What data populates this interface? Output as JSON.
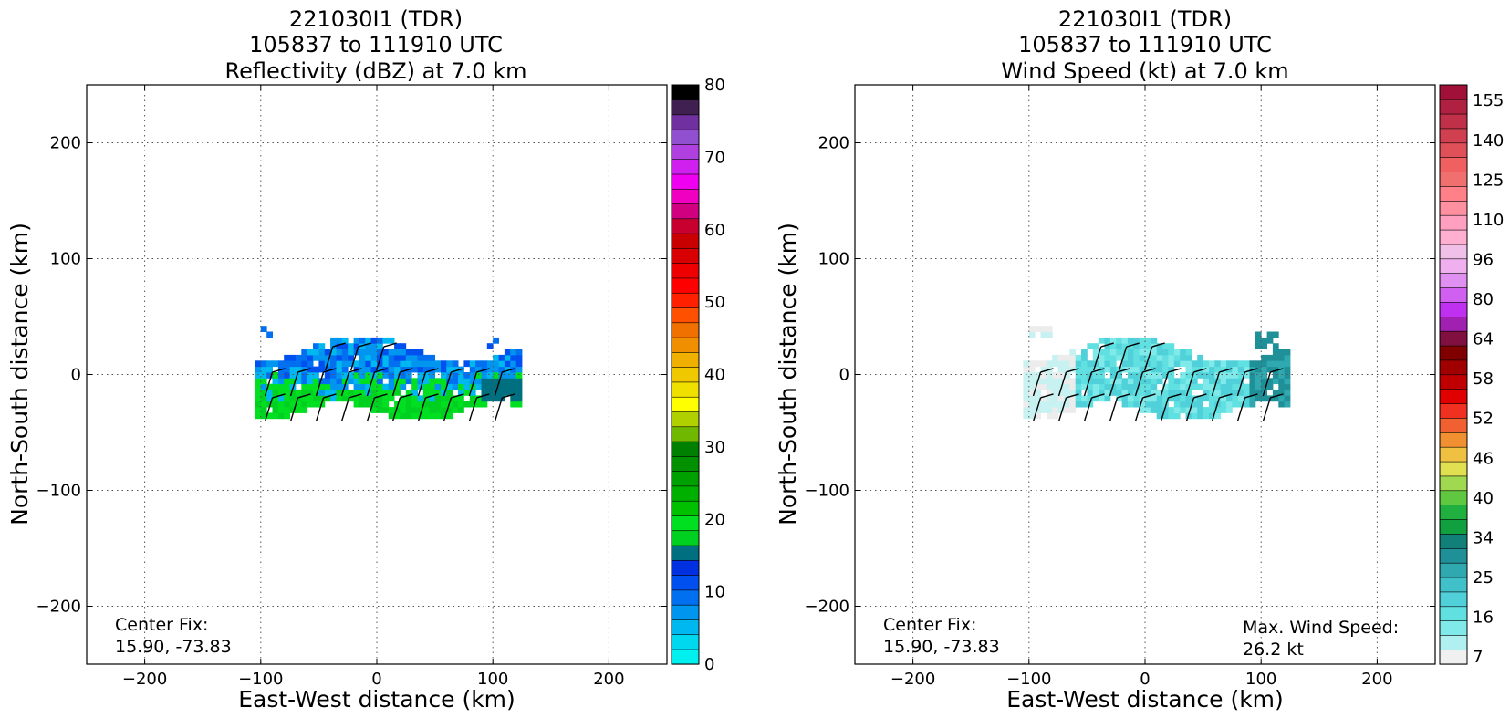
{
  "figure": {
    "panels": [
      {
        "title_lines": [
          "221030I1 (TDR)",
          "105837 to 111910 UTC",
          "Reflectivity (dBZ) at 7.0 km"
        ],
        "xlabel": "East-West distance (km)",
        "ylabel": "North-South distance (km)",
        "center_fix_label": "Center Fix:",
        "center_fix_value": "15.90, -73.83",
        "colorbar": {
          "ticks": [
            "0",
            "10",
            "20",
            "30",
            "40",
            "50",
            "60",
            "70",
            "80"
          ],
          "colors": [
            "#00f0f0",
            "#00d8f0",
            "#00b8f0",
            "#0096f0",
            "#0070f0",
            "#0050f0",
            "#0030e0",
            "#007080",
            "#00d020",
            "#00e020",
            "#00c000",
            "#00b000",
            "#00a000",
            "#009000",
            "#008000",
            "#70b800",
            "#b0d000",
            "#ffff00",
            "#f0e000",
            "#f0c800",
            "#f0b000",
            "#f09000",
            "#f07000",
            "#ff5000",
            "#ff2000",
            "#ff0000",
            "#ee0000",
            "#d80000",
            "#c80000",
            "#c80030",
            "#d00080",
            "#f000c0",
            "#f000f0",
            "#d020f0",
            "#b040e0",
            "#9050d0",
            "#7030a0",
            "#402050",
            "#000000"
          ]
        }
      },
      {
        "title_lines": [
          "221030I1 (TDR)",
          "105837 to 111910 UTC",
          "Wind Speed (kt) at 7.0 km"
        ],
        "xlabel": "East-West distance (km)",
        "ylabel": "North-South distance (km)",
        "center_fix_label": "Center Fix:",
        "center_fix_value": "15.90, -73.83",
        "max_wind_label": "Max. Wind Speed:",
        "max_wind_value": "26.2 kt",
        "colorbar": {
          "ticks": [
            "7",
            "16",
            "25",
            "34",
            "40",
            "46",
            "52",
            "58",
            "64",
            "80",
            "96",
            "110",
            "125",
            "140",
            "155"
          ],
          "colors": [
            "#f0f0f0",
            "#b0f0f0",
            "#80eaea",
            "#60e0e0",
            "#50d0d8",
            "#40c0c8",
            "#30a8b0",
            "#209098",
            "#108078",
            "#10a040",
            "#20b040",
            "#60c840",
            "#a0d850",
            "#e0e050",
            "#f0c040",
            "#f09030",
            "#f06030",
            "#f03020",
            "#e00000",
            "#c00000",
            "#a00000",
            "#800000",
            "#801040",
            "#a020b0",
            "#c030f0",
            "#d060f0",
            "#e090f0",
            "#f0b0f0",
            "#f0c0e8",
            "#ffb0d0",
            "#ffa0c0",
            "#ff90a0",
            "#ff8088",
            "#f07070",
            "#f06060",
            "#e05058",
            "#d04050",
            "#c03048",
            "#b02040",
            "#a01038"
          ]
        }
      }
    ],
    "axes": {
      "xlim": [
        -250,
        250
      ],
      "ylim": [
        -250,
        250
      ],
      "ticks": [
        -200,
        -100,
        0,
        100,
        200
      ],
      "tick_labels": [
        "−200",
        "−100",
        "0",
        "100",
        "200"
      ],
      "grid": "dotted"
    }
  },
  "chart_data": [
    {
      "type": "heatmap",
      "title": "221030I1 (TDR) 105837 to 111910 UTC Reflectivity (dBZ) at 7.0 km",
      "xlabel": "East-West distance (km)",
      "ylabel": "North-South distance (km)",
      "xlim": [
        -250,
        250
      ],
      "ylim": [
        -250,
        250
      ],
      "colorbar_range": [
        0,
        80
      ],
      "echo_extent_km": {
        "x": [
          -110,
          120
        ],
        "y": [
          -45,
          45
        ]
      },
      "dominant_values_dbz": "18–24 in south, 8–14 in north",
      "wind_barbs": true
    },
    {
      "type": "heatmap",
      "title": "221030I1 (TDR) 105837 to 111910 UTC Wind Speed (kt) at 7.0 km",
      "xlabel": "East-West distance (km)",
      "ylabel": "North-South distance (km)",
      "xlim": [
        -250,
        250
      ],
      "ylim": [
        -250,
        250
      ],
      "colorbar_range": [
        7,
        155
      ],
      "echo_extent_km": {
        "x": [
          -110,
          120
        ],
        "y": [
          -45,
          45
        ]
      },
      "max_wind_speed_kt": 26.2,
      "wind_barbs": true
    }
  ]
}
